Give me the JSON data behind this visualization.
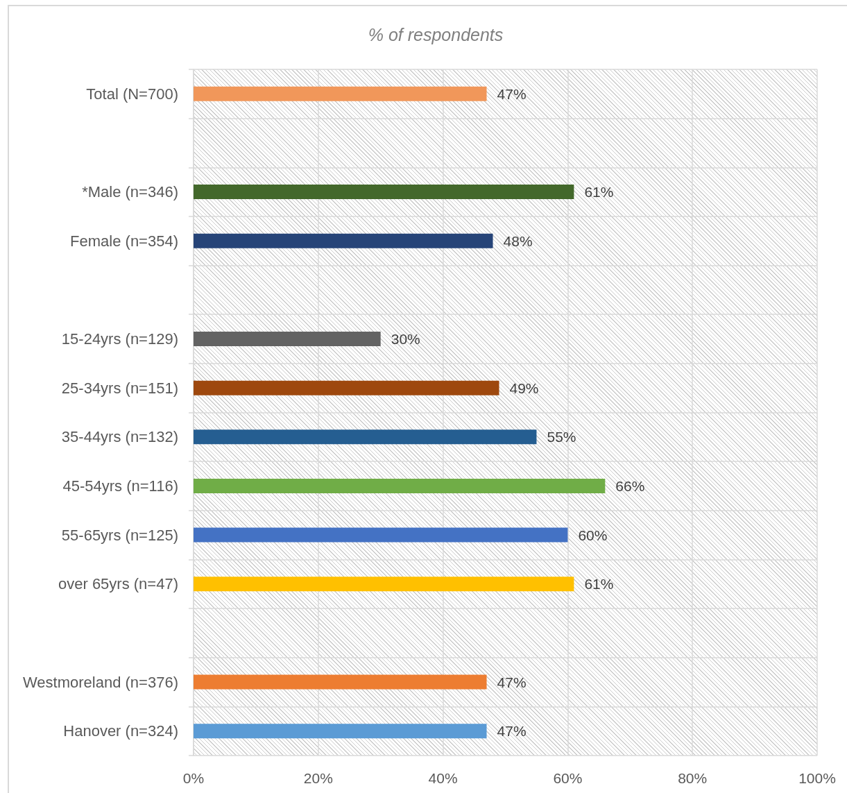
{
  "chart_data": {
    "type": "bar",
    "orientation": "horizontal",
    "title": "% of respondents",
    "categories": [
      "Total (N=700)",
      null,
      "*Male (n=346)",
      "Female (n=354)",
      null,
      "15-24yrs (n=129)",
      "25-34yrs (n=151)",
      "35-44yrs (n=132)",
      "45-54yrs (n=116)",
      "55-65yrs (n=125)",
      "over 65yrs (n=47)",
      null,
      "Westmoreland (n=376)",
      "Hanover (n=324)"
    ],
    "values": [
      47,
      null,
      61,
      48,
      null,
      30,
      49,
      55,
      66,
      60,
      61,
      null,
      47,
      47
    ],
    "colors": [
      "#f1975a",
      null,
      "#43682b",
      "#264478",
      null,
      "#636363",
      "#9e480e",
      "#255e91",
      "#70ad47",
      "#4472c4",
      "#ffc000",
      null,
      "#ed7d31",
      "#5b9bd5"
    ],
    "value_labels": [
      "47%",
      null,
      "61%",
      "48%",
      null,
      "30%",
      "49%",
      "55%",
      "66%",
      "60%",
      "61%",
      null,
      "47%",
      "47%"
    ],
    "xlim": [
      0,
      100
    ],
    "xticks": [
      {
        "value": 0,
        "label": "0%"
      },
      {
        "value": 20,
        "label": "20%"
      },
      {
        "value": 40,
        "label": "40%"
      },
      {
        "value": 60,
        "label": "60%"
      },
      {
        "value": 80,
        "label": "80%"
      },
      {
        "value": 100,
        "label": "100%"
      }
    ],
    "grid": true
  }
}
